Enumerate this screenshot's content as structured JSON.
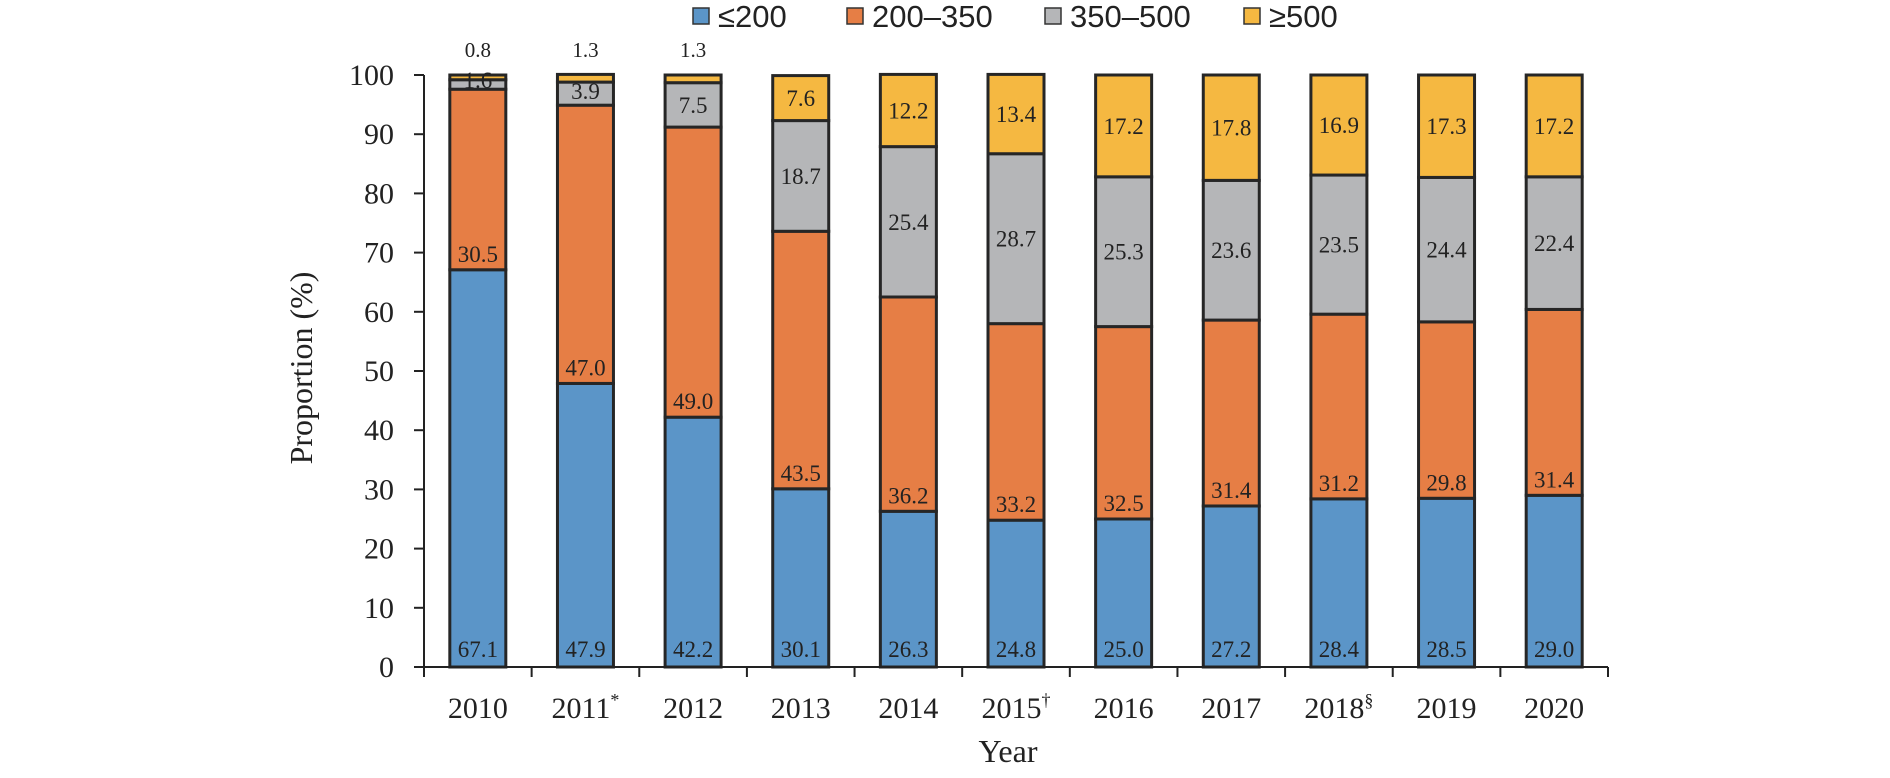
{
  "chart_data": {
    "type": "bar",
    "stacked": true,
    "xlabel": "Year",
    "ylabel": "Proportion (%)",
    "ylim": [
      0,
      100
    ],
    "yticks": [
      "0",
      "10",
      "20",
      "30",
      "40",
      "50",
      "60",
      "70",
      "80",
      "90",
      "100"
    ],
    "categories": [
      "2010",
      "2011",
      "2012",
      "2013",
      "2014",
      "2015",
      "2016",
      "2017",
      "2018",
      "2019",
      "2020"
    ],
    "category_marks": [
      "",
      "*",
      "",
      "",
      "",
      "†",
      "",
      "",
      "§",
      "",
      ""
    ],
    "series": [
      {
        "name": "≤200",
        "color": "#5b95c8",
        "values": [
          67.1,
          47.9,
          42.2,
          30.1,
          26.3,
          24.8,
          25.0,
          27.2,
          28.4,
          28.5,
          29.0
        ]
      },
      {
        "name": "200–350",
        "color": "#e67e45",
        "values": [
          30.5,
          47.0,
          49.0,
          43.5,
          36.2,
          33.2,
          32.5,
          31.4,
          31.2,
          29.8,
          31.4
        ]
      },
      {
        "name": "350–500",
        "color": "#b5b6b8",
        "values": [
          1.6,
          3.9,
          7.5,
          18.7,
          25.4,
          28.7,
          25.3,
          23.6,
          23.5,
          24.4,
          22.4
        ]
      },
      {
        "name": "≥500",
        "color": "#f5b841",
        "values": [
          0.8,
          1.3,
          1.3,
          7.6,
          12.2,
          13.4,
          17.2,
          17.8,
          16.9,
          17.3,
          17.2
        ]
      }
    ],
    "legend_position": "top",
    "grid": false
  }
}
